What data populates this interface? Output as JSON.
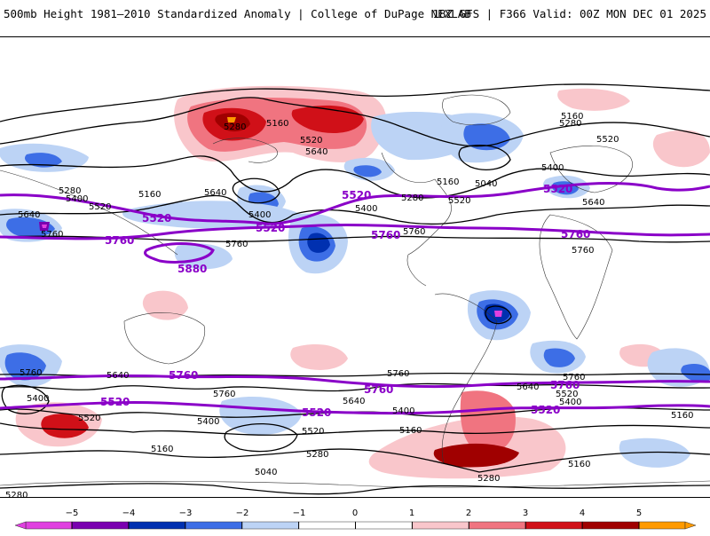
{
  "header": {
    "title_left": "500mb Height 1981–2010 Standardized Anomaly | College of DuPage NEXLAB",
    "title_right": "18Z GFS | F366 Valid: 00Z MON DEC 01 2025"
  },
  "colors": {
    "neg5": "#e040e0",
    "neg4": "#7a00b0",
    "neg3": "#0030b0",
    "neg2": "#3d6ee6",
    "neg1": "#bcd3f5",
    "zero": "#ffffff",
    "pos1": "#f9c6cb",
    "pos2": "#f07480",
    "pos3": "#d01018",
    "pos4": "#a00000",
    "pos5": "#ff9a00",
    "contour": "#000000",
    "highlight": "#8a00c8"
  },
  "colorbar": {
    "ticks": [
      "−5",
      "−4",
      "−3",
      "−2",
      "−1",
      "0",
      "1",
      "2",
      "3",
      "4",
      "5"
    ]
  },
  "contour_labels": {
    "c5160": "5160",
    "c5280": "5280",
    "c5400": "5400",
    "c5520": "5520",
    "c5640": "5640",
    "c5760": "5760",
    "c5040": "5040"
  },
  "highlight_labels": {
    "h5520": "5520",
    "h5760": "5760",
    "h5880": "5880"
  }
}
